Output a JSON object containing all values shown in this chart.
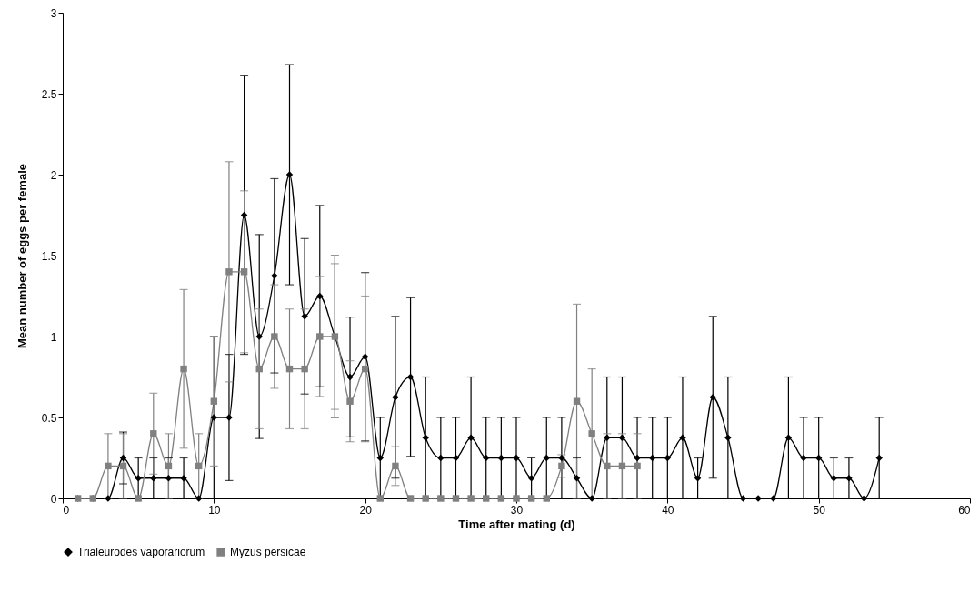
{
  "chart_data": {
    "type": "line",
    "xlabel": "Time after mating (d)",
    "ylabel": "Mean number of eggs per female",
    "xlim": [
      0,
      60
    ],
    "xticks": [
      0,
      10,
      20,
      30,
      40,
      50,
      60
    ],
    "ylim": [
      0,
      3
    ],
    "yticks": [
      0,
      0.5,
      1,
      1.5,
      2,
      2.5,
      3
    ],
    "grid": false,
    "legend": "bottom",
    "series": [
      {
        "name": "Trialeurodes vaporariorum",
        "color": "#000000",
        "marker": "diamond",
        "x": [
          1,
          2,
          3,
          4,
          5,
          6,
          7,
          8,
          9,
          10,
          11,
          12,
          13,
          14,
          15,
          16,
          17,
          18,
          19,
          20,
          21,
          22,
          23,
          24,
          25,
          26,
          27,
          28,
          29,
          30,
          31,
          32,
          33,
          34,
          35,
          36,
          37,
          38,
          39,
          40,
          41,
          42,
          43,
          44,
          45,
          46,
          47,
          48,
          49,
          50,
          51,
          52,
          53,
          54
        ],
        "values": [
          0,
          0,
          0,
          0.25,
          0.125,
          0.125,
          0.125,
          0.125,
          0,
          0.5,
          0.5,
          1.75,
          1,
          1.375,
          2,
          1.125,
          1.25,
          1,
          0.75,
          0.875,
          0.25,
          0.625,
          0.75,
          0.375,
          0.25,
          0.25,
          0.375,
          0.25,
          0.25,
          0.25,
          0.125,
          0.25,
          0.25,
          0.125,
          0,
          0.375,
          0.375,
          0.25,
          0.25,
          0.25,
          0.375,
          0.125,
          0.625,
          0.375,
          0,
          0,
          0,
          0.375,
          0.25,
          0.25,
          0.125,
          0.125,
          0,
          0.25
        ],
        "errors": [
          null,
          null,
          null,
          0.16,
          0.125,
          0.125,
          0.125,
          0.125,
          null,
          0.5,
          0.39,
          0.86,
          0.63,
          0.6,
          0.68,
          0.48,
          0.56,
          0.5,
          0.37,
          0.52,
          0.25,
          0.5,
          0.49,
          0.375,
          0.25,
          0.25,
          0.375,
          0.25,
          0.25,
          0.25,
          0.125,
          0.25,
          0.25,
          0.125,
          null,
          0.375,
          0.375,
          0.25,
          0.25,
          0.25,
          0.375,
          0.125,
          0.5,
          0.375,
          null,
          null,
          null,
          0.375,
          0.25,
          0.25,
          0.125,
          0.125,
          null,
          0.25
        ]
      },
      {
        "name": "Myzus persicae",
        "color": "#808080",
        "marker": "square",
        "x": [
          1,
          2,
          3,
          4,
          5,
          6,
          7,
          8,
          9,
          10,
          11,
          12,
          13,
          14,
          15,
          16,
          17,
          18,
          19,
          20,
          21,
          22,
          23,
          24,
          25,
          26,
          27,
          28,
          29,
          30,
          31,
          32,
          33,
          34,
          35,
          36,
          37,
          38
        ],
        "values": [
          0,
          0,
          0.2,
          0.2,
          0,
          0.4,
          0.2,
          0.8,
          0.2,
          0.6,
          1.4,
          1.4,
          0.8,
          1,
          0.8,
          0.8,
          1,
          1,
          0.6,
          0.8,
          0,
          0.2,
          0,
          0,
          0,
          0,
          0,
          0,
          0,
          0,
          0,
          0,
          0.2,
          0.6,
          0.4,
          0.2,
          0.2,
          0.2
        ],
        "errors": [
          null,
          null,
          0.2,
          0.2,
          null,
          0.25,
          0.2,
          0.49,
          0.2,
          0.4,
          0.68,
          0.5,
          0.37,
          0.32,
          0.37,
          0.37,
          0.37,
          0.45,
          0.25,
          0.45,
          null,
          0.12,
          null,
          null,
          null,
          null,
          null,
          null,
          null,
          null,
          null,
          null,
          0.07,
          0.6,
          0.4,
          0.2,
          0.2,
          0.2
        ]
      }
    ]
  }
}
